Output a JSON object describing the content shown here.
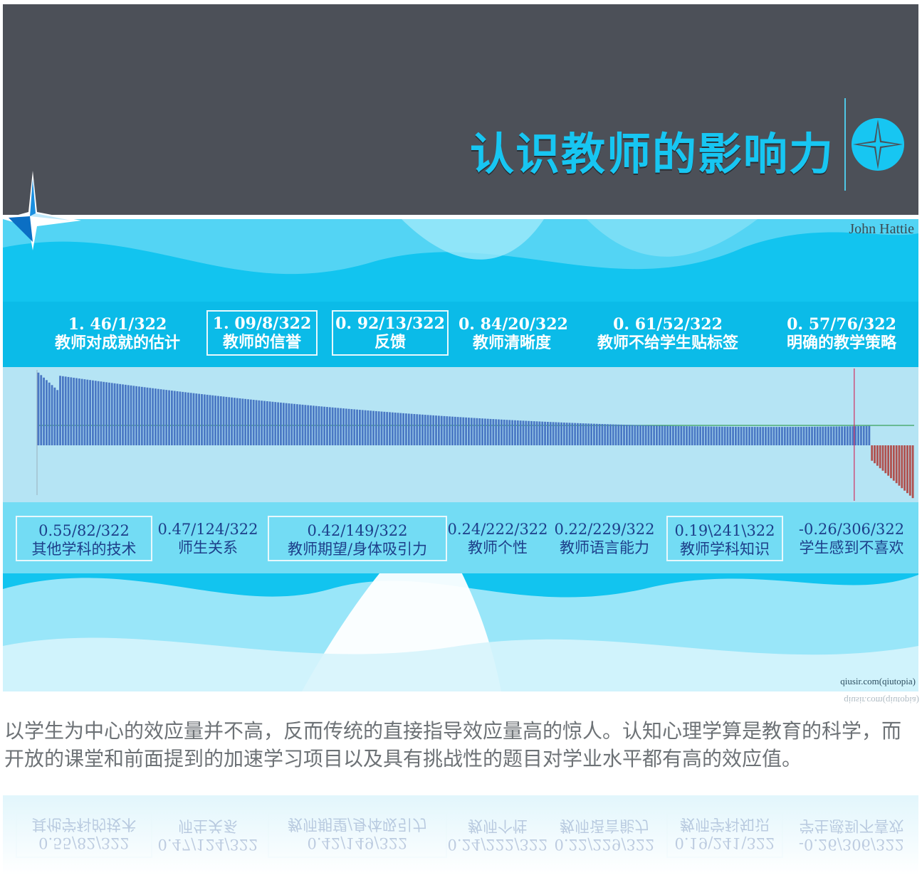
{
  "slide": {
    "title": "认识教师的影响力",
    "author": "John Hattie",
    "watermark": "qiusir.com(qiutopia)",
    "colors": {
      "header_bg": "#4c5058",
      "title": "#17c6f2",
      "accent": "#0fc6f0",
      "bottom_text": "#1d3f8a"
    }
  },
  "top_cards": [
    {
      "stat": "1. 46/1/322",
      "label": "教师对成就的估计",
      "boxed": false
    },
    {
      "stat": "1. 09/8/322",
      "label": "教师的信誉",
      "boxed": true
    },
    {
      "stat": "0. 92/13/322",
      "label": "反馈",
      "boxed": true
    },
    {
      "stat": "0. 84/20/322",
      "label": "教师清晰度",
      "boxed": false
    },
    {
      "stat": "0. 61/52/322",
      "label": "教师不给学生贴标签",
      "boxed": false
    },
    {
      "stat": "0. 57/76/322",
      "label": "明确的教学策略",
      "boxed": false
    }
  ],
  "bottom_cards": [
    {
      "stat": "0.55/82/322",
      "label": "其他学科的技术",
      "boxed": true
    },
    {
      "stat": "0.47/124/322",
      "label": "师生关系",
      "boxed": false
    },
    {
      "stat": "0.42/149/322",
      "label": "教师期望/身体吸引力",
      "boxed": true
    },
    {
      "stat": "0.24/222/322",
      "label": "教师个性",
      "boxed": false
    },
    {
      "stat": "0.22/229/322",
      "label": "教师语言能力",
      "boxed": false
    },
    {
      "stat": "0.19\\241\\322",
      "label": "教师学科知识",
      "boxed": true
    },
    {
      "stat": "-0.26/306/322",
      "label": "学生感到不喜欢",
      "boxed": false
    }
  ],
  "caption": "以学生为中心的效应量并不高，反而传统的直接指导效应量高的惊人。认知心理学算是教育的科学，而开放的课堂和前面提到的加速学习项目以及具有挑战性的题目对学业水平都有高的效应值。",
  "icons": {
    "logo": "compass-star-icon",
    "corner": "four-point-star-icon"
  }
}
